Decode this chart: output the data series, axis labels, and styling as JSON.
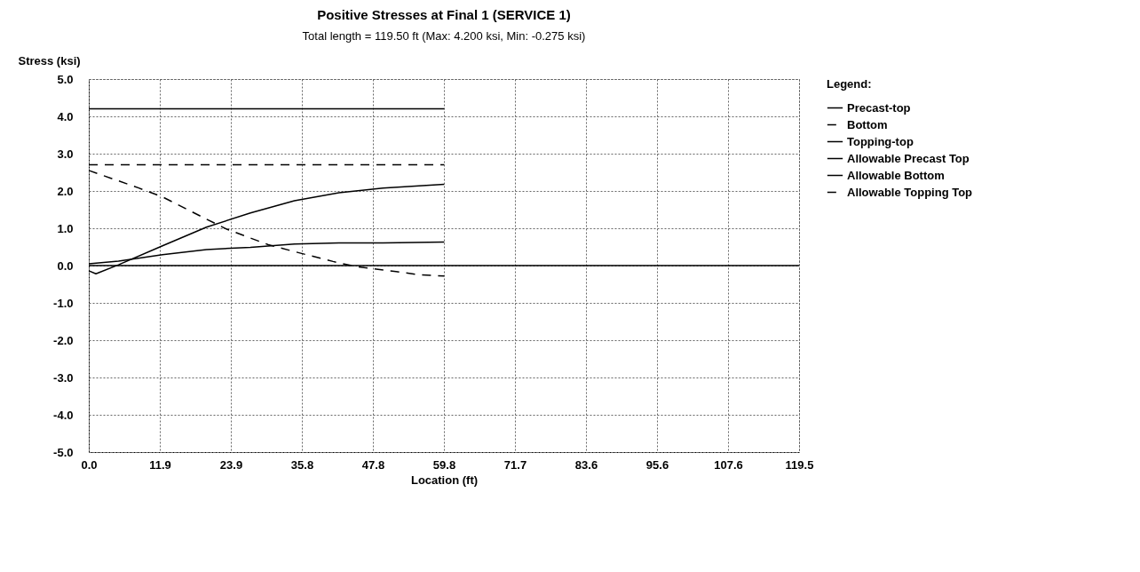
{
  "chart_data": {
    "type": "line",
    "title": "Positive Stresses at Final 1 (SERVICE 1)",
    "subtitle": "Total length = 119.50 ft (Max: 4.200 ksi, Min: -0.275 ksi)",
    "xlabel": "Location (ft)",
    "ylabel": "Stress (ksi)",
    "legend_title": "Legend:",
    "legend": "right",
    "grid": true,
    "xlim": [
      0,
      119.5
    ],
    "ylim": [
      -5,
      5
    ],
    "xticks": [
      {
        "value": 0,
        "label": "0.0"
      },
      {
        "value": 11.95,
        "label": "11.9"
      },
      {
        "value": 23.9,
        "label": "23.9"
      },
      {
        "value": 35.85,
        "label": "35.8"
      },
      {
        "value": 47.8,
        "label": "47.8"
      },
      {
        "value": 59.75,
        "label": "59.8"
      },
      {
        "value": 71.7,
        "label": "71.7"
      },
      {
        "value": 83.65,
        "label": "83.6"
      },
      {
        "value": 95.6,
        "label": "95.6"
      },
      {
        "value": 107.55,
        "label": "107.6"
      },
      {
        "value": 119.5,
        "label": "119.5"
      }
    ],
    "yticks": [
      {
        "value": 5,
        "label": "5.0"
      },
      {
        "value": 4,
        "label": "4.0"
      },
      {
        "value": 3,
        "label": "3.0"
      },
      {
        "value": 2,
        "label": "2.0"
      },
      {
        "value": 1,
        "label": "1.0"
      },
      {
        "value": 0,
        "label": "0.0"
      },
      {
        "value": -1,
        "label": "-1.0"
      },
      {
        "value": -2,
        "label": "-2.0"
      },
      {
        "value": -3,
        "label": "-3.0"
      },
      {
        "value": -4,
        "label": "-4.0"
      },
      {
        "value": -5,
        "label": "-5.0"
      }
    ],
    "series": [
      {
        "name": "Precast-top",
        "color": "#000000",
        "line_style": "solid",
        "x": [
          0,
          1.2,
          5,
          12.4,
          19.8,
          27.2,
          34.6,
          42.1,
          49.5,
          59.8
        ],
        "values": [
          -0.14,
          -0.22,
          0.02,
          0.53,
          1.03,
          1.41,
          1.74,
          1.95,
          2.08,
          2.18
        ]
      },
      {
        "name": "Bottom",
        "color": "#000000",
        "line_style": "dashed",
        "x": [
          0,
          8.4,
          12.4,
          19.6,
          23.3,
          30.2,
          34.2,
          41.1,
          45,
          51.7,
          55.7,
          59.8
        ],
        "values": [
          2.55,
          2.08,
          1.84,
          1.26,
          0.97,
          0.56,
          0.39,
          0.11,
          -0.03,
          -0.16,
          -0.25,
          -0.28
        ]
      },
      {
        "name": "Topping-top",
        "color": "#000000",
        "line_style": "solid",
        "x": [
          0,
          5,
          12.4,
          19.8,
          27.2,
          34.6,
          42.1,
          49.5,
          59.8
        ],
        "values": [
          0.05,
          0.12,
          0.29,
          0.43,
          0.49,
          0.58,
          0.61,
          0.61,
          0.63
        ]
      },
      {
        "name": "Allowable Precast Top",
        "color": "#000000",
        "line_style": "solid",
        "x": [
          0,
          59.8
        ],
        "values": [
          4.2,
          4.2
        ]
      },
      {
        "name": "Allowable Bottom",
        "color": "#000000",
        "line_style": "solid",
        "x": [
          0,
          119.5
        ],
        "values": [
          0,
          0
        ]
      },
      {
        "name": "Allowable Topping Top",
        "color": "#000000",
        "line_style": "dashed",
        "x": [
          0,
          59.8
        ],
        "values": [
          2.7,
          2.7
        ]
      }
    ]
  }
}
